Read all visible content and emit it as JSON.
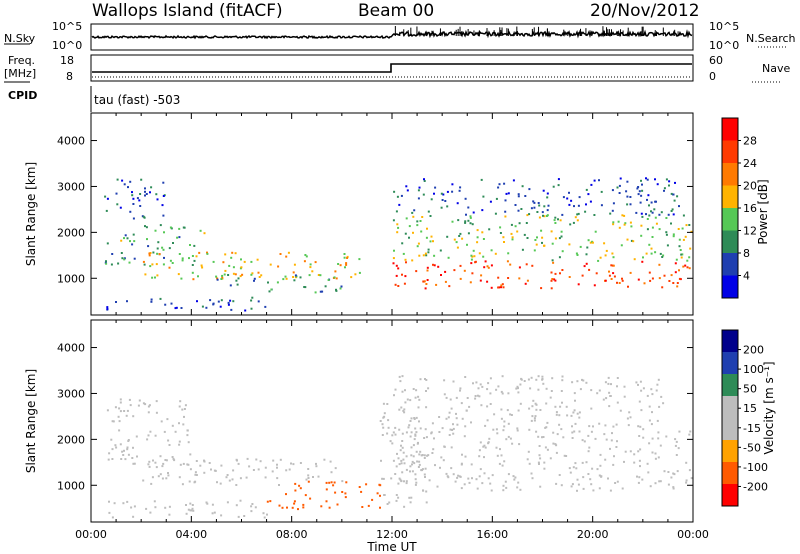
{
  "header": {
    "station": "Wallops Island (fitACF)",
    "beam": "Beam 00",
    "date": "20/Nov/2012"
  },
  "strips": {
    "nsky_label": "N.Sky",
    "nsky_ticks": [
      "10^5",
      "10^0"
    ],
    "nsearch_label": "N.Search",
    "nsearch_ticks": [
      "10^5",
      "10^0"
    ],
    "freq_label": "Freq.",
    "freq_unit": "[MHz]",
    "freq_ticks": [
      "18",
      "8"
    ],
    "nave_label": "Nave",
    "nave_ticks": [
      "60",
      "0"
    ],
    "cpid_label": "CPID",
    "cpid_value": "tau (fast) -503"
  },
  "colors": {
    "power_scale": [
      "#0000e6",
      "#1f3fb0",
      "#2e8b57",
      "#55c855",
      "#ffb300",
      "#ff7a00",
      "#ff3a00",
      "#ff0000"
    ],
    "velocity_scale": [
      "#ff0000",
      "#ff5a00",
      "#ffa200",
      "#bdbdbd",
      "#bdbdbd",
      "#2e8b57",
      "#1f3fb0",
      "#00008b"
    ],
    "ground_scatter": "#bdbdbd"
  },
  "chart_data": [
    {
      "type": "heatmap",
      "title": "",
      "xlabel": "",
      "ylabel": "Slant Range [km]",
      "colorbar_label": "Power [dB]",
      "colorbar_ticks": [
        "28",
        "24",
        "20",
        "16",
        "12",
        "8",
        "4"
      ],
      "colorbar_range": [
        0,
        32
      ],
      "yticks": [
        "4000",
        "3000",
        "2000",
        "1000"
      ],
      "ylim": [
        200,
        4600
      ],
      "xlim": [
        "00:00",
        "24:00"
      ],
      "regions": [
        {
          "t0": 0.5,
          "t1": 4.5,
          "r0": 1300,
          "r1": 2200,
          "value": 12
        },
        {
          "t0": 0.5,
          "t1": 3.0,
          "r0": 2300,
          "r1": 3200,
          "value": 6
        },
        {
          "t0": 2.0,
          "t1": 11.0,
          "r0": 1000,
          "r1": 1600,
          "value": 18
        },
        {
          "t0": 5.0,
          "t1": 10.0,
          "r0": 700,
          "r1": 1100,
          "value": 10
        },
        {
          "t0": 0.5,
          "t1": 7.0,
          "r0": 300,
          "r1": 600,
          "value": 6
        },
        {
          "t0": 12.0,
          "t1": 24.0,
          "r0": 800,
          "r1": 1400,
          "value": 26
        },
        {
          "t0": 12.0,
          "t1": 24.0,
          "r0": 1400,
          "r1": 2400,
          "value": 14
        },
        {
          "t0": 12.0,
          "t1": 23.5,
          "r0": 2400,
          "r1": 3200,
          "value": 6
        }
      ]
    },
    {
      "type": "heatmap",
      "title": "",
      "xlabel": "Time UT",
      "ylabel": "Slant Range [km]",
      "colorbar_label": "Velocity [m s⁻¹]",
      "colorbar_ticks": [
        "200",
        "100",
        "50",
        "15",
        "-15",
        "-50",
        "-100",
        "-200"
      ],
      "colorbar_range": [
        -250,
        250
      ],
      "yticks": [
        "4000",
        "3000",
        "2000",
        "1000"
      ],
      "ylim": [
        200,
        4600
      ],
      "xticks": [
        "00:00",
        "04:00",
        "08:00",
        "12:00",
        "16:00",
        "20:00",
        "00:00"
      ],
      "xlim": [
        "00:00",
        "24:00"
      ],
      "regions": [
        {
          "t0": 0.5,
          "t1": 4.0,
          "r0": 1400,
          "r1": 2900,
          "value": 0
        },
        {
          "t0": 2.0,
          "t1": 10.0,
          "r0": 1000,
          "r1": 1600,
          "value": 30
        },
        {
          "t0": 7.0,
          "t1": 11.5,
          "r0": 500,
          "r1": 1100,
          "value": -60
        },
        {
          "t0": 0.5,
          "t1": 7.0,
          "r0": 300,
          "r1": 700,
          "value": 30
        },
        {
          "t0": 12.0,
          "t1": 24.0,
          "r0": 900,
          "r1": 2300,
          "value": 0
        },
        {
          "t0": 11.5,
          "t1": 13.5,
          "r0": 500,
          "r1": 2800,
          "value": 30
        },
        {
          "t0": 12.0,
          "t1": 23.0,
          "r0": 2300,
          "r1": 3400,
          "value": 0
        }
      ]
    }
  ]
}
